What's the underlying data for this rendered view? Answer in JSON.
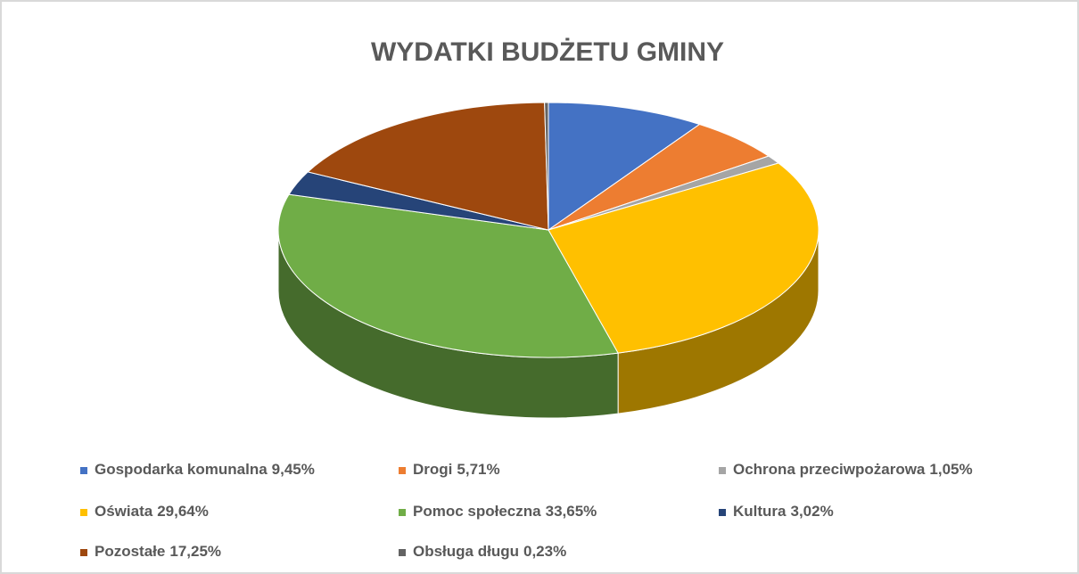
{
  "chart_data": {
    "type": "pie",
    "title": "WYDATKI BUDŻETU GMINY",
    "categories": [
      "Gospodarka komunalna",
      "Drogi",
      "Ochrona przeciwpożarowa",
      "Oświata",
      "Pomoc społeczna",
      "Kultura",
      "Pozostałe",
      "Obsługa długu"
    ],
    "values": [
      9.45,
      5.71,
      1.05,
      29.64,
      33.65,
      3.02,
      17.25,
      0.23
    ],
    "value_labels": [
      "9,45%",
      "5,71%",
      "1,05%",
      "29,64%",
      "33,65%",
      "3,02%",
      "17,25%",
      "0,23%"
    ],
    "colors": [
      "#4472c4",
      "#ed7d31",
      "#a5a5a5",
      "#ffc000",
      "#70ad47",
      "#264478",
      "#9e480e",
      "#636363"
    ],
    "legend": "bottom"
  }
}
